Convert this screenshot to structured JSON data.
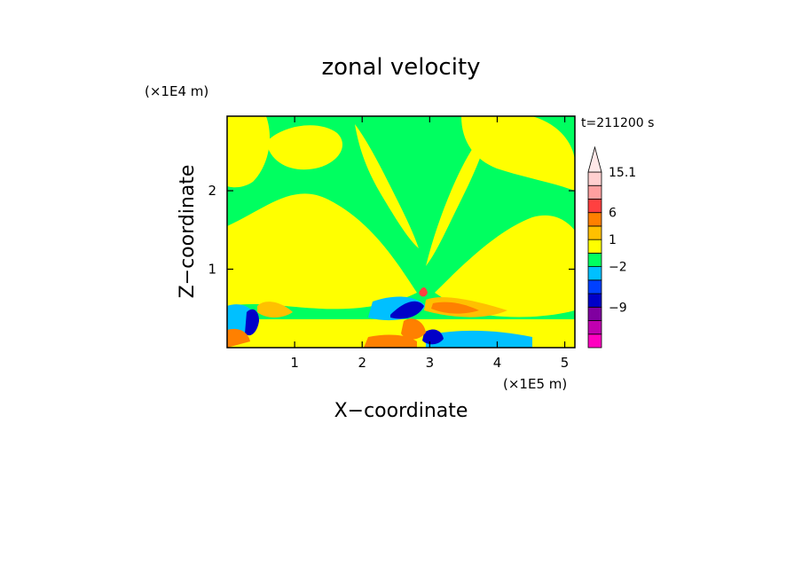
{
  "chart_data": {
    "type": "heatmap",
    "title": "zonal velocity",
    "xlabel": "X−coordinate",
    "ylabel": "Z−coordinate",
    "x_scale_note": "(×1E5 m)",
    "y_scale_note": "(×1E4 m)",
    "time_label": "t=211200 s",
    "xlim": [
      0,
      5.15
    ],
    "ylim": [
      0,
      2.95
    ],
    "x_ticks": [
      {
        "value": 1,
        "label": "1"
      },
      {
        "value": 2,
        "label": "2"
      },
      {
        "value": 3,
        "label": "3"
      },
      {
        "value": 4,
        "label": "4"
      },
      {
        "value": 5,
        "label": "5"
      }
    ],
    "y_ticks": [
      {
        "value": 1,
        "label": "1"
      },
      {
        "value": 2,
        "label": "2"
      }
    ],
    "colorbar": {
      "levels": [
        {
          "color": "#ff00c0",
          "label": ""
        },
        {
          "color": "#c000b0",
          "label": ""
        },
        {
          "color": "#8000a0",
          "label": "−9"
        },
        {
          "color": "#0000c8",
          "label": ""
        },
        {
          "color": "#0040ff",
          "label": ""
        },
        {
          "color": "#00c0ff",
          "label": "−2"
        },
        {
          "color": "#00ff60",
          "label": ""
        },
        {
          "color": "#ffff00",
          "label": "1"
        },
        {
          "color": "#ffc000",
          "label": ""
        },
        {
          "color": "#ff8000",
          "label": "6"
        },
        {
          "color": "#ff4040",
          "label": ""
        },
        {
          "color": "#ffa0a0",
          "label": ""
        },
        {
          "color": "#ffd0d0",
          "label": "15.1"
        }
      ]
    }
  }
}
